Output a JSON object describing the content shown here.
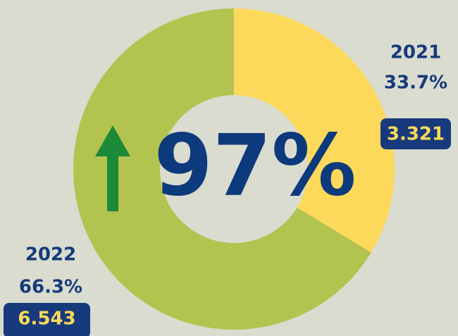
{
  "chart_data": {
    "type": "donut",
    "categories": [
      "2021",
      "2022"
    ],
    "values": [
      33.7,
      66.3
    ],
    "value_labels": [
      "33.7%",
      "66.3%"
    ],
    "amounts": [
      3.321,
      6.543
    ],
    "colors": [
      "#fcd95a",
      "#b3c34f"
    ],
    "annotation": "97%"
  }
}
